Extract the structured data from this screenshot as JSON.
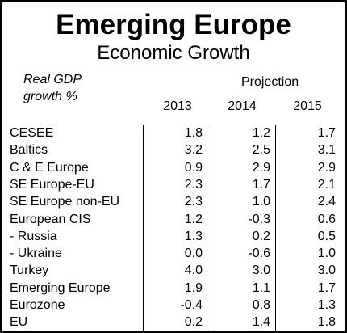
{
  "chart_data": {
    "type": "table",
    "title": "Emerging Europe",
    "subtitle": "Economic Growth",
    "row_header": [
      "Real GDP",
      "growth %"
    ],
    "projection_label": "Projection",
    "columns": [
      "2013",
      "2014",
      "2015"
    ],
    "rows": [
      {
        "label": "CESEE",
        "values": [
          "1.8",
          "1.2",
          "1.7"
        ]
      },
      {
        "label": "Baltics",
        "values": [
          "3.2",
          "2.5",
          "3.1"
        ]
      },
      {
        "label": "C & E Europe",
        "values": [
          "0.9",
          "2.9",
          "2.9"
        ]
      },
      {
        "label": "SE Europe-EU",
        "values": [
          "2.3",
          "1.7",
          "2.1"
        ]
      },
      {
        "label": "SE Europe non-EU",
        "values": [
          "2.3",
          "1.0",
          "2.4"
        ]
      },
      {
        "label": "European CIS",
        "values": [
          "1.2",
          "-0.3",
          "0.6"
        ]
      },
      {
        "label": "- Russia",
        "values": [
          "1.3",
          "0.2",
          "0.5"
        ]
      },
      {
        "label": "- Ukraine",
        "values": [
          "0.0",
          "-0.6",
          "1.0"
        ]
      },
      {
        "label": "Turkey",
        "values": [
          "4.0",
          "3.0",
          "3.0"
        ]
      },
      {
        "label": "Emerging Europe",
        "values": [
          "1.9",
          "1.1",
          "1.7"
        ]
      },
      {
        "label": "Eurozone",
        "values": [
          "-0.4",
          "0.8",
          "1.3"
        ]
      },
      {
        "label": "EU",
        "values": [
          "0.2",
          "1.4",
          "1.8"
        ]
      }
    ]
  }
}
